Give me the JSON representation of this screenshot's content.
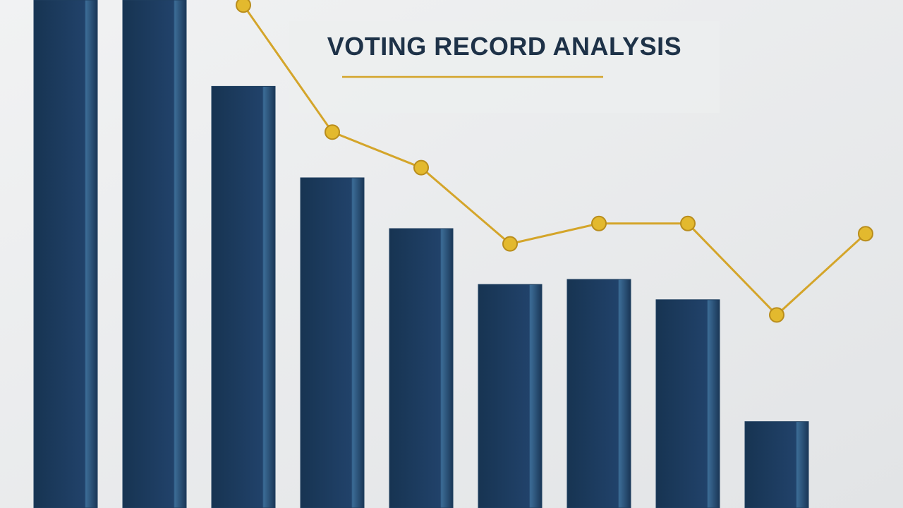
{
  "chart_data": {
    "type": "bar",
    "title": "VOTING RECORD ANALYSIS",
    "categories": [
      null,
      null,
      null,
      null,
      null,
      null,
      null,
      null,
      null,
      null
    ],
    "series": [
      {
        "type": "bar",
        "color": "#1f3f5f",
        "values": [
          100,
          100,
          83,
          65,
          55,
          44,
          45,
          41,
          17,
          null
        ]
      },
      {
        "type": "line",
        "color": "#d4a52a",
        "values": [
          null,
          null,
          99,
          74,
          67,
          52,
          56,
          56,
          38,
          54
        ]
      }
    ],
    "ylim": [
      0,
      100
    ],
    "grid": false
  }
}
